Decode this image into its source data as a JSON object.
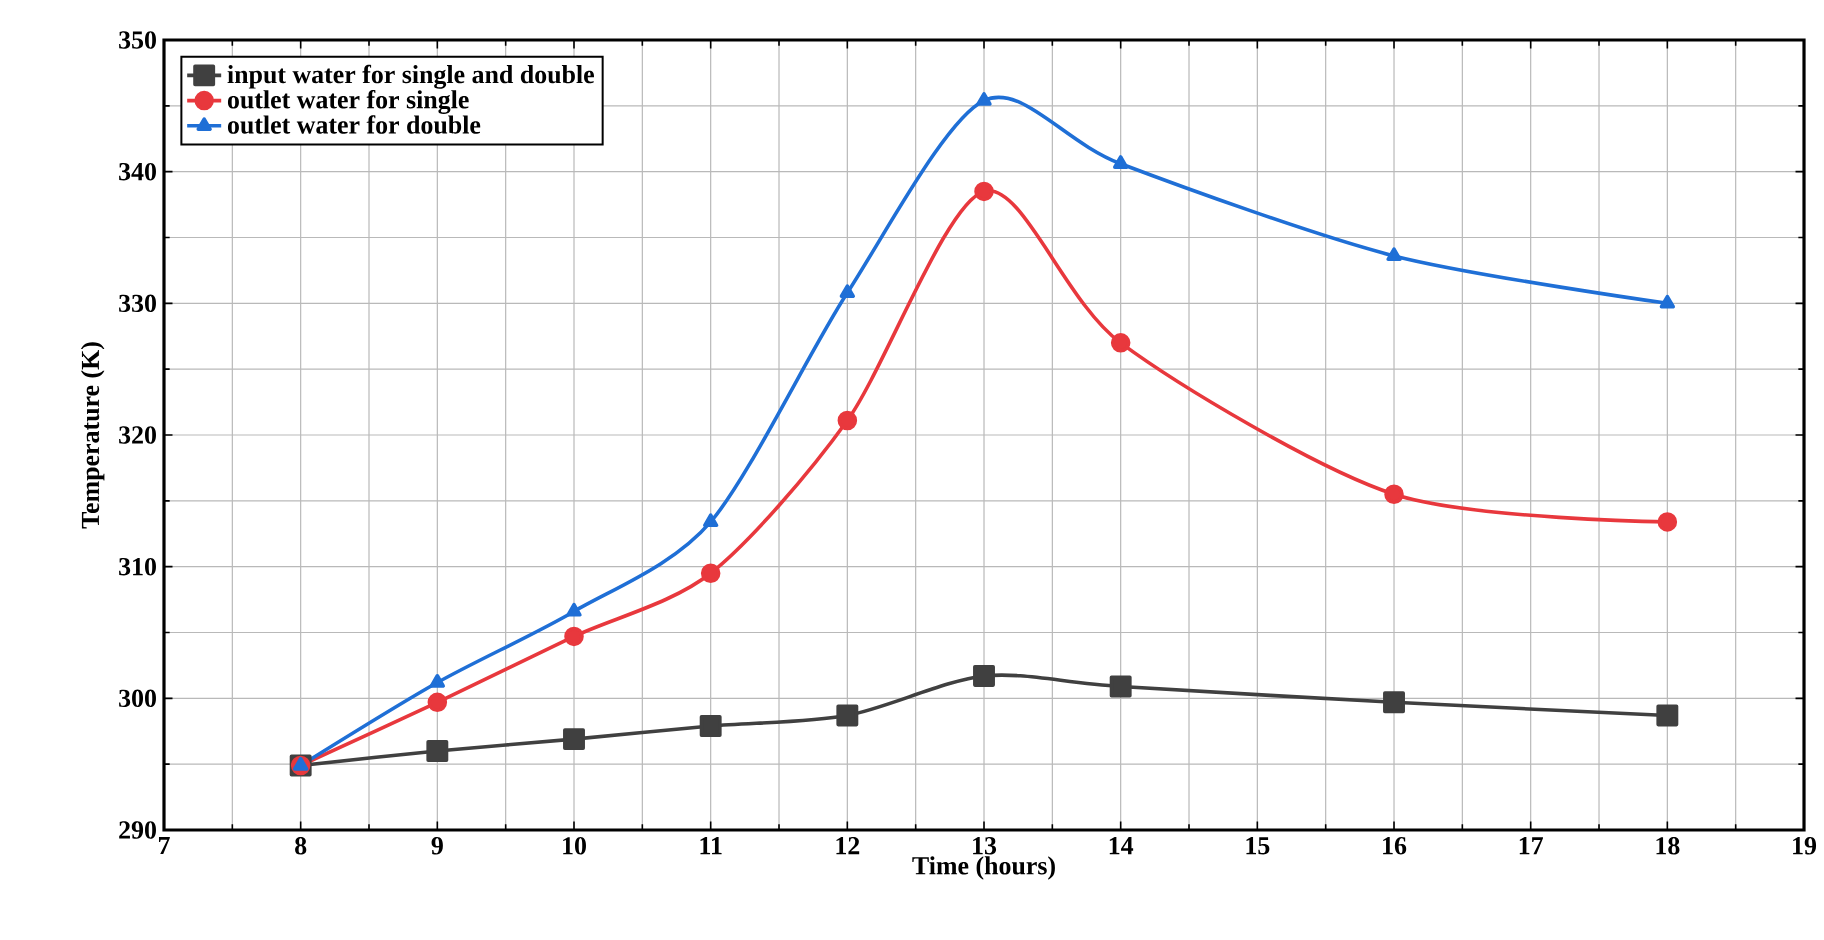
{
  "chart_data": {
    "type": "line",
    "xlabel": "Time (hours)",
    "ylabel": "Temperature (K)",
    "x": [
      8,
      9,
      10,
      11,
      12,
      13,
      14,
      16,
      18
    ],
    "series": [
      {
        "name": "input water for single and double",
        "color": "#404040",
        "marker": "square",
        "values": [
          294.9,
          296.0,
          296.9,
          297.9,
          298.7,
          301.7,
          300.9,
          299.7,
          298.7
        ]
      },
      {
        "name": "outlet water for single",
        "color": "#e8383d",
        "marker": "circle",
        "values": [
          294.9,
          299.7,
          304.7,
          309.5,
          321.1,
          338.5,
          327.0,
          315.5,
          313.4
        ]
      },
      {
        "name": "outlet water for double",
        "color": "#1f6fd6",
        "marker": "triangle",
        "values": [
          294.9,
          301.2,
          306.6,
          313.4,
          330.8,
          345.4,
          340.6,
          333.6,
          330.0
        ]
      }
    ],
    "xlim": [
      7,
      19
    ],
    "xticks": [
      7,
      8,
      9,
      10,
      11,
      12,
      13,
      14,
      15,
      16,
      17,
      18,
      19
    ],
    "ylim": [
      290,
      350
    ],
    "yticks": [
      290,
      300,
      310,
      320,
      330,
      340,
      350
    ],
    "grid": true,
    "legend": "top left",
    "line_style": "solid"
  }
}
